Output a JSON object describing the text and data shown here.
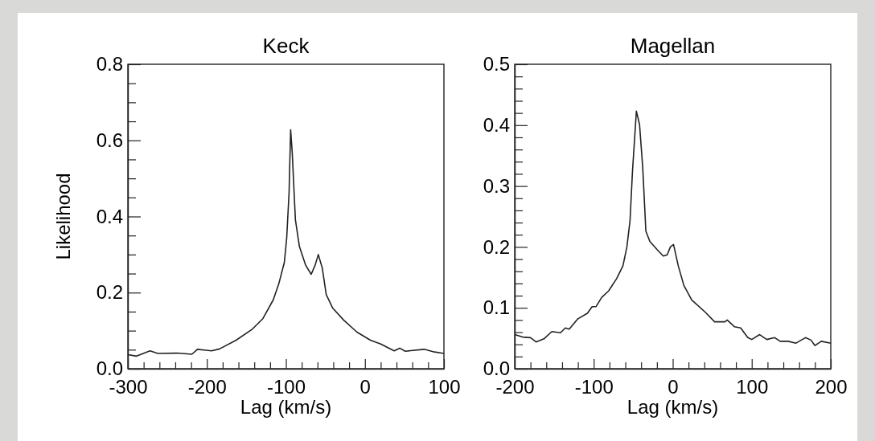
{
  "chart_data": [
    {
      "type": "line",
      "title": "Keck",
      "xlabel": "Lag (km/s)",
      "ylabel": "Likelihood",
      "xlim": [
        -300,
        100
      ],
      "ylim": [
        0,
        0.8
      ],
      "xticks": [
        -300,
        {
          "value": -280,
          "label": null
        },
        {
          "value": -260,
          "label": null
        },
        {
          "value": -240,
          "label": null
        },
        {
          "value": -220,
          "label": null
        },
        -200,
        {
          "value": -180,
          "label": null
        },
        {
          "value": -160,
          "label": null
        },
        {
          "value": -140,
          "label": null
        },
        {
          "value": -120,
          "label": null
        },
        -100,
        {
          "value": -80,
          "label": null
        },
        {
          "value": -60,
          "label": null
        },
        {
          "value": -40,
          "label": null
        },
        {
          "value": -20,
          "label": null
        },
        0,
        {
          "value": 20,
          "label": null
        },
        {
          "value": 40,
          "label": null
        },
        {
          "value": 60,
          "label": null
        },
        {
          "value": 80,
          "label": null
        },
        100
      ],
      "yticks": [
        {
          "value": 0,
          "label": "0.0"
        },
        {
          "value": 0.05,
          "label": null
        },
        {
          "value": 0.1,
          "label": null
        },
        {
          "value": 0.15,
          "label": null
        },
        0.2,
        {
          "value": 0.25,
          "label": null
        },
        {
          "value": 0.3,
          "label": null
        },
        {
          "value": 0.35,
          "label": null
        },
        0.4,
        {
          "value": 0.45,
          "label": null
        },
        {
          "value": 0.5,
          "label": null
        },
        {
          "value": 0.55,
          "label": null
        },
        0.6,
        {
          "value": 0.65,
          "label": null
        },
        {
          "value": 0.7,
          "label": null
        },
        {
          "value": 0.75,
          "label": null
        },
        0.8
      ],
      "grid": false,
      "series": [
        {
          "color": "#222222",
          "x": [
            -300,
            -289,
            -272,
            -262,
            -238,
            -219,
            -212,
            -194,
            -184,
            -163,
            -143,
            -129,
            -116,
            -109,
            -102,
            -99,
            -96,
            -94,
            -92,
            -88,
            -83,
            -75,
            -68,
            -63,
            -59,
            -54,
            -49,
            -41,
            -27,
            -10,
            7,
            20,
            37,
            44,
            51,
            75,
            88,
            100
          ],
          "values": [
            0.037,
            0.033,
            0.047,
            0.04,
            0.041,
            0.038,
            0.051,
            0.047,
            0.052,
            0.075,
            0.103,
            0.132,
            0.181,
            0.223,
            0.279,
            0.343,
            0.462,
            0.628,
            0.568,
            0.392,
            0.322,
            0.272,
            0.248,
            0.272,
            0.3,
            0.265,
            0.195,
            0.16,
            0.128,
            0.096,
            0.075,
            0.065,
            0.047,
            0.054,
            0.046,
            0.051,
            0.044,
            0.04
          ]
        }
      ]
    },
    {
      "type": "line",
      "title": "Magellan",
      "xlabel": "Lag (km/s)",
      "xlim": [
        -200,
        200
      ],
      "ylim": [
        0,
        0.5
      ],
      "xticks": [
        -200,
        {
          "value": -180,
          "label": null
        },
        {
          "value": -160,
          "label": null
        },
        {
          "value": -140,
          "label": null
        },
        {
          "value": -120,
          "label": null
        },
        -100,
        {
          "value": -80,
          "label": null
        },
        {
          "value": -60,
          "label": null
        },
        {
          "value": -40,
          "label": null
        },
        {
          "value": -20,
          "label": null
        },
        0,
        {
          "value": 20,
          "label": null
        },
        {
          "value": 40,
          "label": null
        },
        {
          "value": 60,
          "label": null
        },
        {
          "value": 80,
          "label": null
        },
        100,
        {
          "value": 120,
          "label": null
        },
        {
          "value": 140,
          "label": null
        },
        {
          "value": 160,
          "label": null
        },
        {
          "value": 180,
          "label": null
        },
        200
      ],
      "yticks": [
        {
          "value": 0,
          "label": "0.0"
        },
        {
          "value": 0.02,
          "label": null
        },
        {
          "value": 0.04,
          "label": null
        },
        {
          "value": 0.06,
          "label": null
        },
        {
          "value": 0.08,
          "label": null
        },
        0.1,
        {
          "value": 0.12,
          "label": null
        },
        {
          "value": 0.14,
          "label": null
        },
        {
          "value": 0.16,
          "label": null
        },
        {
          "value": 0.18,
          "label": null
        },
        0.2,
        {
          "value": 0.22,
          "label": null
        },
        {
          "value": 0.24,
          "label": null
        },
        {
          "value": 0.26,
          "label": null
        },
        {
          "value": 0.28,
          "label": null
        },
        0.3,
        {
          "value": 0.32,
          "label": null
        },
        {
          "value": 0.34,
          "label": null
        },
        {
          "value": 0.36,
          "label": null
        },
        {
          "value": 0.38,
          "label": null
        },
        0.4,
        {
          "value": 0.42,
          "label": null
        },
        {
          "value": 0.44,
          "label": null
        },
        {
          "value": 0.46,
          "label": null
        },
        {
          "value": 0.48,
          "label": null
        },
        0.5
      ],
      "grid": false,
      "series": [
        {
          "color": "#222222",
          "x": [
            -200,
            -190,
            -180,
            -173,
            -163,
            -153,
            -142,
            -136,
            -131,
            -120,
            -108,
            -102,
            -97,
            -90,
            -81,
            -71,
            -63,
            -58,
            -54,
            -51,
            -46,
            -42,
            -38,
            -34,
            -29,
            -20,
            -12,
            -7,
            -3,
            1,
            7,
            14,
            24,
            41,
            53,
            66,
            69,
            78,
            86,
            95,
            100,
            110,
            119,
            129,
            136,
            146,
            156,
            168,
            175,
            180,
            188,
            200
          ],
          "values": [
            0.056,
            0.052,
            0.051,
            0.044,
            0.049,
            0.061,
            0.059,
            0.067,
            0.065,
            0.082,
            0.091,
            0.102,
            0.102,
            0.117,
            0.128,
            0.148,
            0.169,
            0.2,
            0.244,
            0.323,
            0.423,
            0.401,
            0.331,
            0.226,
            0.209,
            0.196,
            0.185,
            0.187,
            0.2,
            0.204,
            0.169,
            0.137,
            0.113,
            0.093,
            0.077,
            0.077,
            0.08,
            0.069,
            0.067,
            0.051,
            0.048,
            0.056,
            0.048,
            0.051,
            0.045,
            0.045,
            0.042,
            0.051,
            0.047,
            0.038,
            0.045,
            0.042
          ]
        }
      ]
    }
  ]
}
